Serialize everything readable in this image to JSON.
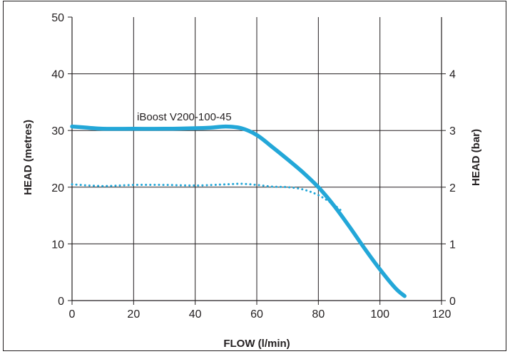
{
  "chart_data": {
    "type": "line",
    "xlabel": "FLOW (l/min)",
    "ylabel": "HEAD (metres)",
    "y2label": "HEAD (bar)",
    "xlim": [
      0,
      120
    ],
    "ylim": [
      0,
      50
    ],
    "y2lim": [
      0,
      5
    ],
    "x_ticks": [
      "0",
      "20",
      "40",
      "60",
      "80",
      "100",
      "120"
    ],
    "y_ticks": [
      "0",
      "10",
      "20",
      "30",
      "40",
      "50"
    ],
    "y2_ticks": [
      "0",
      "1",
      "2",
      "3",
      "4"
    ],
    "grid": true,
    "annotation": "iBoost V200-100-45",
    "series": [
      {
        "name": "iBoost V200-100-45",
        "style": "solid",
        "color": "#23a7d8",
        "x": [
          0,
          5,
          10,
          20,
          30,
          40,
          45,
          50,
          55,
          60,
          65,
          70,
          75,
          80,
          85,
          90,
          95,
          100,
          105,
          108
        ],
        "y": [
          30.7,
          30.5,
          30.3,
          30.3,
          30.3,
          30.4,
          30.5,
          30.7,
          30.4,
          29.2,
          27.1,
          24.9,
          22.6,
          20.0,
          16.8,
          13.1,
          9.2,
          5.5,
          2.2,
          0.8
        ]
      },
      {
        "style": "dotted",
        "color": "#23a7d8",
        "x": [
          0,
          10,
          20,
          30,
          40,
          50,
          55,
          60,
          65,
          70,
          75,
          80,
          85,
          88
        ],
        "y": [
          20.5,
          20.2,
          20.4,
          20.4,
          20.3,
          20.5,
          20.6,
          20.4,
          20.1,
          20.0,
          19.6,
          18.6,
          16.9,
          15.6
        ]
      }
    ]
  }
}
